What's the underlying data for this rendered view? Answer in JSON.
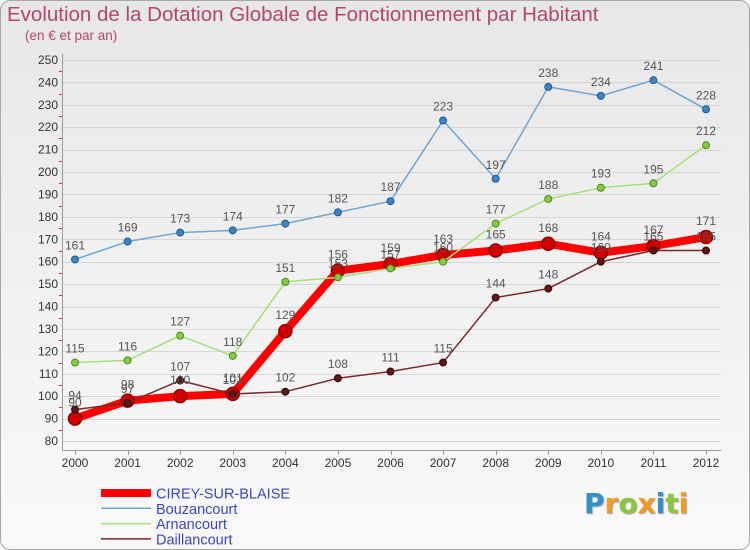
{
  "chart_data": {
    "type": "line",
    "title": "Evolution de la Dotation Globale de Fonctionnement par Habitant",
    "subtitle": "(en € et par an)",
    "xlabel": "",
    "ylabel": "",
    "x": [
      "2000",
      "2001",
      "2002",
      "2003",
      "2004",
      "2005",
      "2006",
      "2007",
      "2008",
      "2009",
      "2010",
      "2011",
      "2012"
    ],
    "ylim": [
      80,
      250
    ],
    "y_ticks": [
      80,
      90,
      100,
      110,
      120,
      130,
      140,
      150,
      160,
      170,
      180,
      190,
      200,
      210,
      220,
      230,
      240,
      250
    ],
    "grid": true,
    "legend_position": "bottom-left",
    "series": [
      {
        "name": "CIREY-SUR-BLAISE",
        "values": [
          90,
          98,
          100,
          101,
          129,
          156,
          159,
          163,
          165,
          168,
          164,
          167,
          171
        ],
        "color": "#ff0000",
        "point_color": "#d10000",
        "point_border": "#8e0000",
        "highlight": true
      },
      {
        "name": "Bouzancourt",
        "values": [
          161,
          169,
          173,
          174,
          177,
          182,
          187,
          223,
          197,
          238,
          234,
          241,
          228
        ],
        "color": "#6ea5d3",
        "point_color": "#3d84c2",
        "point_border": "#1f5b92",
        "highlight": false
      },
      {
        "name": "Arnancourt",
        "values": [
          115,
          116,
          127,
          118,
          151,
          153,
          157,
          160,
          177,
          188,
          193,
          195,
          212
        ],
        "color": "#a5df7c",
        "point_color": "#86cc3f",
        "point_border": "#4a8a1c",
        "highlight": false
      },
      {
        "name": "Daillancourt",
        "values": [
          94,
          97,
          107,
          101,
          102,
          108,
          111,
          115,
          144,
          148,
          160,
          165,
          165
        ],
        "color": "#7a2828",
        "point_color": "#5e1616",
        "point_border": "#360808",
        "highlight": false
      }
    ]
  },
  "logo": {
    "text": "Proxiti",
    "colors": [
      "#2f8fcf",
      "#f39a22",
      "#8cc63f",
      "#f39a22",
      "#2f8fcf",
      "#8cc63f",
      "#f39a22"
    ]
  },
  "colors": {
    "title": "#b5466f",
    "legend_text": "#3a45c9",
    "tick_text": "#333333",
    "data_label": "#555555",
    "grid": "#d6d6d6",
    "axis": "#9a9a9a",
    "minor_tick": "#e03030"
  }
}
